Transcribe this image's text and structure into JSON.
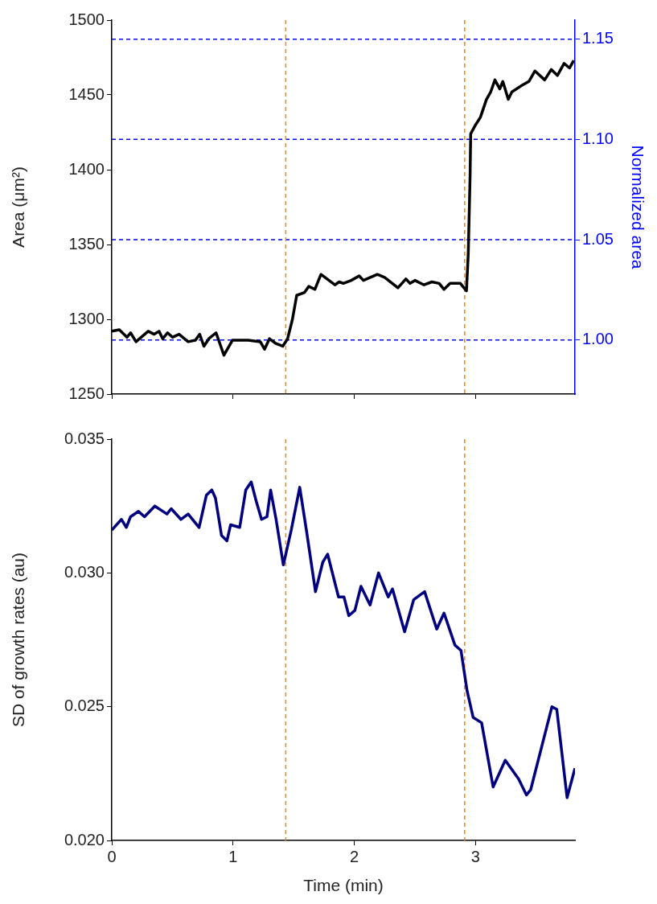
{
  "chart_data": [
    {
      "type": "line",
      "ylabel": "Area (μm²)",
      "y2label": "Normalized area",
      "xlim": [
        0,
        3.82
      ],
      "xticks": [
        0,
        1,
        2,
        3
      ],
      "ylim": [
        1250,
        1500
      ],
      "yticks": [
        1250,
        1300,
        1350,
        1400,
        1450,
        1500
      ],
      "y2lim": [
        0.973,
        1.1595
      ],
      "y2ticks": [
        {
          "value": 1.0,
          "label": "1.00"
        },
        {
          "value": 1.05,
          "label": "1.05"
        },
        {
          "value": 1.1,
          "label": "1.10"
        },
        {
          "value": 1.15,
          "label": "1.15"
        }
      ],
      "tick_labels": "y",
      "grid": false,
      "legend": false,
      "marker": "none",
      "line_style": "solid",
      "series": [
        {
          "color": "#000000",
          "x": [
            0,
            0.0625,
            0.125,
            0.155,
            0.2,
            0.3,
            0.35,
            0.39,
            0.42,
            0.46,
            0.5,
            0.555,
            0.63,
            0.69,
            0.725,
            0.76,
            0.8,
            0.86,
            0.925,
            0.995,
            1.125,
            1.225,
            1.26,
            1.3,
            1.35,
            1.41,
            1.45,
            1.49,
            1.525,
            1.59,
            1.625,
            1.675,
            1.725,
            1.84,
            1.875,
            1.91,
            1.975,
            2.04,
            2.075,
            2.19,
            2.25,
            2.36,
            2.425,
            2.46,
            2.5,
            2.575,
            2.64,
            2.7,
            2.74,
            2.79,
            2.875,
            2.925,
            2.94,
            2.955,
            2.96,
            3.0,
            3.04,
            3.09,
            3.125,
            3.16,
            3.2,
            3.225,
            3.27,
            3.3,
            3.375,
            3.44,
            3.49,
            3.57,
            3.625,
            3.675,
            3.73,
            3.775,
            3.81
          ],
          "values": [
            1292,
            1293,
            1288,
            1291,
            1285,
            1292,
            1290,
            1292,
            1287,
            1291,
            1288,
            1290,
            1285,
            1286,
            1290,
            1282,
            1287,
            1291,
            1276,
            1286,
            1286,
            1285,
            1280,
            1287,
            1284,
            1282,
            1287,
            1300,
            1316,
            1318,
            1322,
            1320,
            1330,
            1323,
            1325,
            1324,
            1326,
            1329,
            1326,
            1330,
            1328,
            1321,
            1327,
            1324,
            1326,
            1323,
            1325,
            1324,
            1320,
            1324,
            1324,
            1319,
            1344,
            1396,
            1424,
            1430,
            1435,
            1447,
            1452,
            1460,
            1454,
            1459,
            1447,
            1452,
            1456,
            1459,
            1466,
            1460,
            1467,
            1463,
            1471,
            1468,
            1473
          ]
        }
      ],
      "ref_lines": [
        {
          "axis": "y2",
          "value": 1.0,
          "color": "#0000ff",
          "line_style": "dashed"
        },
        {
          "axis": "y2",
          "value": 1.05,
          "color": "#0000ff",
          "line_style": "dashed"
        },
        {
          "axis": "y2",
          "value": 1.1,
          "color": "#0000ff",
          "line_style": "dashed"
        },
        {
          "axis": "y2",
          "value": 1.15,
          "color": "#0000ff",
          "line_style": "dashed"
        },
        {
          "axis": "x",
          "value": 1.435,
          "color": "#ff8000",
          "line_style": "dashed"
        },
        {
          "axis": "x",
          "value": 2.91,
          "color": "#ff8000",
          "line_style": "dashed"
        }
      ]
    },
    {
      "type": "line",
      "xlabel": "Time (min)",
      "ylabel": "SD of growth rates (au)",
      "xlim": [
        0,
        3.82
      ],
      "xticks": [
        0,
        1,
        2,
        3
      ],
      "ylim": [
        0.02,
        0.035
      ],
      "yticks": [
        {
          "value": 0.02,
          "label": "0.020"
        },
        {
          "value": 0.025,
          "label": "0.025"
        },
        {
          "value": 0.03,
          "label": "0.030"
        },
        {
          "value": 0.035,
          "label": "0.035"
        }
      ],
      "grid": false,
      "legend": false,
      "marker": "none",
      "line_style": "solid",
      "series": [
        {
          "color": "#000080",
          "x": [
            0,
            0.08,
            0.12,
            0.155,
            0.22,
            0.27,
            0.355,
            0.455,
            0.49,
            0.57,
            0.63,
            0.72,
            0.78,
            0.825,
            0.855,
            0.905,
            0.95,
            0.98,
            1.055,
            1.105,
            1.15,
            1.19,
            1.235,
            1.28,
            1.31,
            1.355,
            1.415,
            1.48,
            1.55,
            1.605,
            1.68,
            1.74,
            1.78,
            1.87,
            1.915,
            1.955,
            2.005,
            2.055,
            2.13,
            2.2,
            2.28,
            2.315,
            2.415,
            2.49,
            2.58,
            2.68,
            2.74,
            2.83,
            2.88,
            2.93,
            2.98,
            3.05,
            3.145,
            3.245,
            3.355,
            3.42,
            3.455,
            3.63,
            3.67,
            3.755,
            3.82
          ],
          "values": [
            0.0316,
            0.032,
            0.0317,
            0.0321,
            0.0323,
            0.0321,
            0.0325,
            0.0322,
            0.0324,
            0.032,
            0.0322,
            0.0317,
            0.0329,
            0.0331,
            0.0328,
            0.0314,
            0.0312,
            0.0318,
            0.0317,
            0.0331,
            0.0334,
            0.0327,
            0.032,
            0.0321,
            0.0331,
            0.032,
            0.0303,
            0.0316,
            0.0332,
            0.0316,
            0.0293,
            0.0304,
            0.0307,
            0.0291,
            0.0291,
            0.0284,
            0.0286,
            0.0295,
            0.0288,
            0.03,
            0.0291,
            0.0294,
            0.0278,
            0.029,
            0.0293,
            0.0279,
            0.0285,
            0.0273,
            0.0271,
            0.0256,
            0.0246,
            0.0244,
            0.022,
            0.023,
            0.0223,
            0.0217,
            0.0219,
            0.025,
            0.0249,
            0.0216,
            0.0227
          ]
        }
      ],
      "ref_lines": [
        {
          "axis": "x",
          "value": 1.435,
          "color": "#ff8000",
          "line_style": "dashed"
        },
        {
          "axis": "x",
          "value": 2.91,
          "color": "#ff8000",
          "line_style": "dashed"
        }
      ]
    }
  ]
}
